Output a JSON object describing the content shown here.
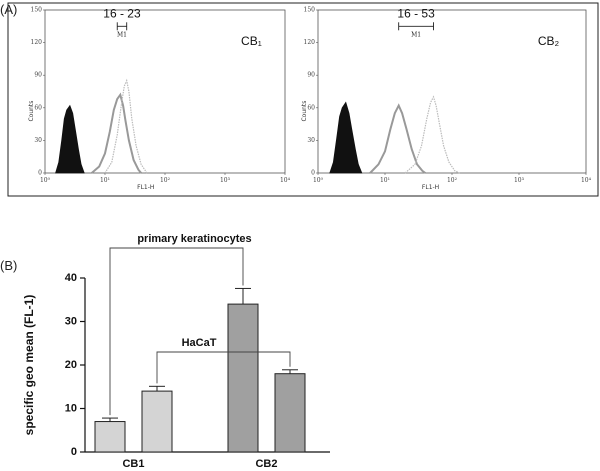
{
  "panel_a_label": "(A)",
  "panel_b_label": "(B)",
  "chart_data": [
    {
      "type": "line",
      "subtype": "flow-cytometry-histogram",
      "panel": "CB1",
      "title": "CB₁",
      "xlabel": "FL1-H",
      "ylabel": "Counts",
      "x_scale": "log",
      "xlim": [
        1,
        10000
      ],
      "ylim": [
        0,
        150
      ],
      "x_ticks": [
        "10⁰",
        "10¹",
        "10²",
        "10³",
        "10⁴"
      ],
      "y_ticks": [
        "0",
        "30",
        "60",
        "90",
        "120",
        "150"
      ],
      "gate": {
        "label": "M1",
        "range": [
          16,
          23
        ],
        "text": "16 - 23"
      },
      "series": [
        {
          "style": "filled-black",
          "points": [
            [
              1.5,
              0
            ],
            [
              1.7,
              10
            ],
            [
              1.9,
              30
            ],
            [
              2.1,
              50
            ],
            [
              2.3,
              58
            ],
            [
              2.6,
              62
            ],
            [
              2.9,
              55
            ],
            [
              3.2,
              40
            ],
            [
              3.6,
              22
            ],
            [
              4.0,
              8
            ],
            [
              4.5,
              0
            ]
          ]
        },
        {
          "style": "gray-line",
          "points": [
            [
              6,
              0
            ],
            [
              8,
              6
            ],
            [
              10,
              18
            ],
            [
              12,
              38
            ],
            [
              14,
              58
            ],
            [
              16,
              68
            ],
            [
              18,
              72
            ],
            [
              20,
              62
            ],
            [
              22,
              48
            ],
            [
              25,
              30
            ],
            [
              30,
              12
            ],
            [
              36,
              3
            ],
            [
              40,
              0
            ]
          ]
        },
        {
          "style": "light-dotted",
          "points": [
            [
              10,
              0
            ],
            [
              13,
              10
            ],
            [
              16,
              35
            ],
            [
              19,
              65
            ],
            [
              21,
              80
            ],
            [
              23,
              85
            ],
            [
              25,
              75
            ],
            [
              28,
              50
            ],
            [
              33,
              25
            ],
            [
              40,
              8
            ],
            [
              50,
              0
            ]
          ]
        }
      ]
    },
    {
      "type": "line",
      "subtype": "flow-cytometry-histogram",
      "panel": "CB2",
      "title": "CB₂",
      "xlabel": "FL1-H",
      "ylabel": "Counts",
      "x_scale": "log",
      "xlim": [
        1,
        10000
      ],
      "ylim": [
        0,
        150
      ],
      "x_ticks": [
        "10⁰",
        "10¹",
        "10²",
        "10³",
        "10⁴"
      ],
      "y_ticks": [
        "0",
        "30",
        "60",
        "90",
        "120",
        "150"
      ],
      "gate": {
        "label": "M1",
        "range": [
          16,
          53
        ],
        "text": "16 - 53"
      },
      "series": [
        {
          "style": "filled-black",
          "points": [
            [
              1.5,
              0
            ],
            [
              1.7,
              10
            ],
            [
              1.9,
              32
            ],
            [
              2.1,
              52
            ],
            [
              2.3,
              60
            ],
            [
              2.6,
              65
            ],
            [
              2.9,
              55
            ],
            [
              3.2,
              40
            ],
            [
              3.6,
              22
            ],
            [
              4.0,
              8
            ],
            [
              4.5,
              0
            ]
          ]
        },
        {
          "style": "gray-line",
          "points": [
            [
              6,
              0
            ],
            [
              8,
              8
            ],
            [
              10,
              20
            ],
            [
              12,
              40
            ],
            [
              14,
              55
            ],
            [
              16,
              62
            ],
            [
              18,
              55
            ],
            [
              21,
              40
            ],
            [
              25,
              22
            ],
            [
              30,
              8
            ],
            [
              36,
              2
            ],
            [
              40,
              0
            ]
          ]
        },
        {
          "style": "light-dotted",
          "points": [
            [
              20,
              0
            ],
            [
              28,
              8
            ],
            [
              35,
              25
            ],
            [
              42,
              50
            ],
            [
              48,
              65
            ],
            [
              53,
              70
            ],
            [
              58,
              62
            ],
            [
              65,
              45
            ],
            [
              75,
              25
            ],
            [
              90,
              10
            ],
            [
              110,
              2
            ],
            [
              130,
              0
            ]
          ]
        }
      ]
    },
    {
      "type": "bar",
      "panel": "B",
      "categories": [
        "CB1",
        "CB2"
      ],
      "ylabel": "specific geo mean (FL-1)",
      "ylim": [
        0,
        40
      ],
      "y_ticks": [
        0,
        10,
        20,
        30,
        40
      ],
      "series": [
        {
          "values": [
            7,
            34
          ],
          "errors": [
            0.8,
            3.6
          ],
          "colors": [
            "#d4d4d4",
            "#a0a0a0"
          ]
        },
        {
          "values": [
            14,
            18
          ],
          "errors": [
            1.1,
            0.9
          ],
          "colors": [
            "#d4d4d4",
            "#a0a0a0"
          ]
        }
      ],
      "annotations": [
        {
          "text": "primary keratinocytes",
          "connects": [
            [
              0,
              0
            ],
            [
              1,
              0
            ]
          ]
        },
        {
          "text": "HaCaT",
          "connects": [
            [
              0,
              1
            ],
            [
              1,
              1
            ]
          ]
        }
      ]
    }
  ]
}
